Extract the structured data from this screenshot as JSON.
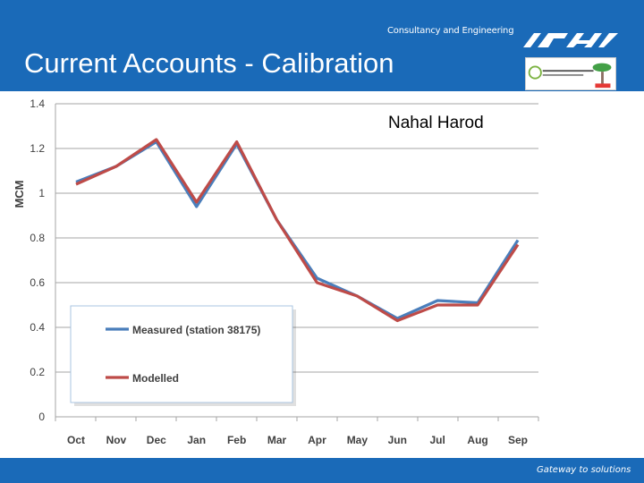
{
  "header": {
    "title": "Current Accounts - Calibration",
    "tagline": "Consultancy and Engineering"
  },
  "footer": {
    "tagline": "Gateway to solutions"
  },
  "colors": {
    "brand_blue": "#1a6ab8",
    "measured": "#4a7ebb",
    "modelled": "#be4b48"
  },
  "chart_data": {
    "type": "line",
    "title": "Nahal Harod",
    "xlabel": "",
    "ylabel": "MCM",
    "categories": [
      "Oct",
      "Nov",
      "Dec",
      "Jan",
      "Feb",
      "Mar",
      "Apr",
      "May",
      "Jun",
      "Jul",
      "Aug",
      "Sep"
    ],
    "ylim": [
      0,
      1.4
    ],
    "yticks": [
      "0",
      "0.2",
      "0.4",
      "0.6",
      "0.8",
      "1",
      "1.2",
      "1.4"
    ],
    "grid": true,
    "legend_position": "bottom-left",
    "series": [
      {
        "name": "Measured (station  38175)",
        "values": [
          1.05,
          1.12,
          1.23,
          0.94,
          1.22,
          0.88,
          0.62,
          0.54,
          0.44,
          0.52,
          0.51,
          0.79
        ]
      },
      {
        "name": "Modelled",
        "values": [
          1.04,
          1.12,
          1.24,
          0.96,
          1.23,
          0.88,
          0.6,
          0.54,
          0.43,
          0.5,
          0.5,
          0.77
        ]
      }
    ]
  }
}
